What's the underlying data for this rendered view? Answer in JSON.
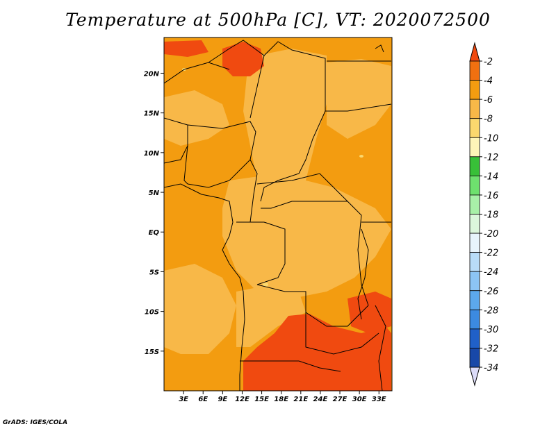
{
  "title": "Temperature at 500hPa [C], VT: 2020072500",
  "credit": "GrADS: IGES/COLA",
  "map": {
    "lon_range": [
      0,
      35
    ],
    "lat_range": [
      -20,
      24.5
    ],
    "x_ticks": [
      "3E",
      "6E",
      "9E",
      "12E",
      "15E",
      "18E",
      "21E",
      "24E",
      "27E",
      "30E",
      "33E"
    ],
    "x_tick_values": [
      3,
      6,
      9,
      12,
      15,
      18,
      21,
      24,
      27,
      30,
      33
    ],
    "y_ticks": [
      "15S",
      "10S",
      "5S",
      "EQ",
      "5N",
      "10N",
      "15N",
      "20N"
    ],
    "y_tick_values": [
      -15,
      -10,
      -5,
      0,
      5,
      10,
      15,
      20
    ]
  },
  "colorbar": {
    "labels": [
      "-2",
      "-4",
      "-6",
      "-8",
      "-10",
      "-12",
      "-14",
      "-16",
      "-18",
      "-20",
      "-22",
      "-24",
      "-26",
      "-28",
      "-30",
      "-32",
      "-34"
    ],
    "colors": [
      "#f04a10",
      "#f07010",
      "#f39c10",
      "#f8b848",
      "#fbd86e",
      "#fef5b8",
      "#38c038",
      "#6ee06e",
      "#a8f0a8",
      "#dcf6dc",
      "#e8f4fc",
      "#b8dcf8",
      "#8cc4f4",
      "#5ca8ec",
      "#3c8ae0",
      "#2060c8",
      "#1848a8",
      "#0c1c70"
    ],
    "top_color": "#f04a10",
    "bottom_color": "#dcdcf8"
  },
  "field_colors": {
    "dark_red": "#f04a10",
    "orange": "#f39c10",
    "light_orange": "#f8b848",
    "pale": "#fbd86e"
  }
}
